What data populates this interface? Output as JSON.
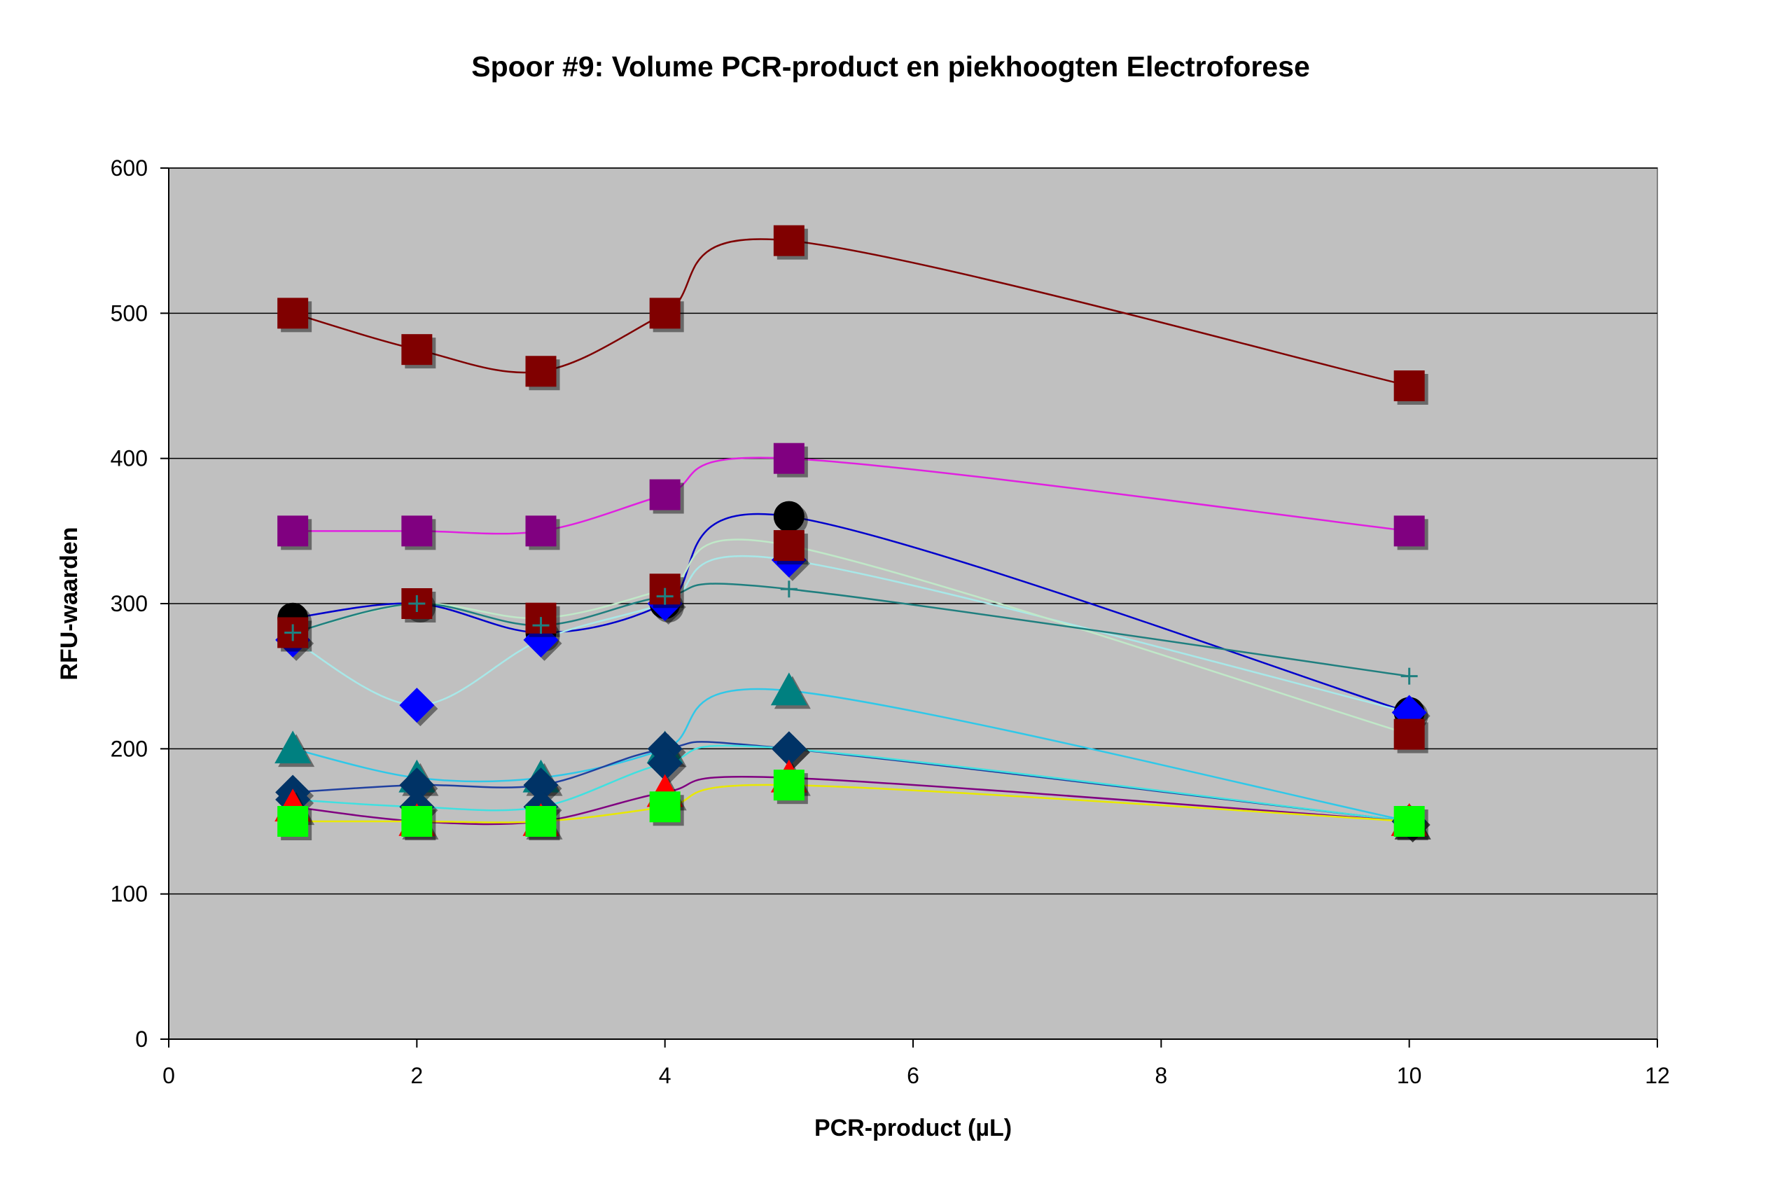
{
  "chart_data": {
    "type": "line",
    "title": "Spoor #9: Volume PCR-product en piekhoogten Electroforese",
    "xlabel": "PCR-product (µL)",
    "ylabel": "RFU-waarden",
    "xlim": [
      0,
      12
    ],
    "ylim": [
      0,
      600
    ],
    "xticks": [
      0,
      2,
      4,
      6,
      8,
      10,
      12
    ],
    "yticks": [
      0,
      100,
      200,
      300,
      400,
      500,
      600
    ],
    "xtick_labels": [
      "0",
      "2",
      "4",
      "6",
      "8",
      "10",
      "12"
    ],
    "ytick_labels": [
      "0",
      "100",
      "200",
      "300",
      "400",
      "500",
      "600"
    ],
    "smooth": true,
    "grid": "horizontal",
    "legend": "none",
    "plot_background": "#C0C0C0",
    "x": [
      1,
      2,
      3,
      4,
      5,
      10
    ],
    "series": [
      {
        "values": [
          500,
          475,
          460,
          500,
          550,
          450
        ],
        "color": "#7F0000",
        "marker": "square",
        "marker_color": "#800000"
      },
      {
        "values": [
          350,
          350,
          350,
          375,
          400,
          350
        ],
        "color": "#E020E0",
        "marker": "square",
        "marker_color": "#800080"
      },
      {
        "values": [
          290,
          300,
          280,
          300,
          360,
          225
        ],
        "color": "#0000CC",
        "marker": "circle",
        "marker_color": "#000000"
      },
      {
        "values": [
          275,
          230,
          275,
          300,
          330,
          225
        ],
        "color": "#A8E8E8",
        "marker": "diamond",
        "marker_color": "#0000FF"
      },
      {
        "values": [
          280,
          300,
          290,
          310,
          340,
          210
        ],
        "color": "#C0E8C8",
        "marker": "square",
        "marker_color": "#800000"
      },
      {
        "values": [
          280,
          300,
          285,
          305,
          310,
          250
        ],
        "color": "#1F7F7F",
        "marker": "plus",
        "marker_color": "#1F7F7F"
      },
      {
        "values": [
          200,
          180,
          180,
          200,
          240,
          150
        ],
        "color": "#30C8E8",
        "marker": "triangle",
        "marker_color": "#008080"
      },
      {
        "values": [
          170,
          175,
          175,
          200,
          200,
          150
        ],
        "color": "#2040A0",
        "marker": "diamond",
        "marker_color": "#003366"
      },
      {
        "values": [
          165,
          160,
          160,
          190,
          200,
          150
        ],
        "color": "#40E0E0",
        "marker": "diamond",
        "marker_color": "#003366"
      },
      {
        "values": [
          160,
          150,
          150,
          170,
          180,
          150
        ],
        "color": "#800080",
        "marker": "triangle",
        "marker_color": "#FF0000"
      },
      {
        "values": [
          150,
          150,
          150,
          160,
          175,
          150
        ],
        "color": "#E8E800",
        "marker": "square",
        "marker_color": "#00FF00"
      }
    ]
  }
}
